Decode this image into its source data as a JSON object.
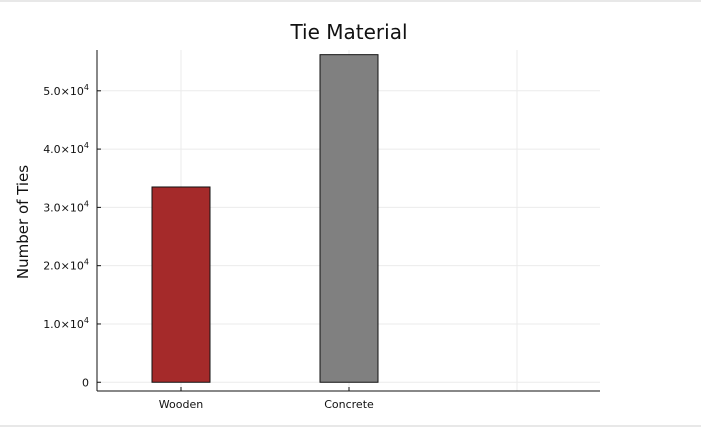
{
  "chart_data": {
    "type": "bar",
    "title": "Tie Material",
    "xlabel": "",
    "ylabel": "Number of Ties",
    "categories": [
      "Wooden",
      "Concrete"
    ],
    "values": [
      33500,
      56200
    ],
    "colors": [
      "#a52a2a",
      "#808080"
    ],
    "ylim": [
      -1500,
      57000
    ],
    "y_ticks": [
      {
        "value": 0,
        "label": "0",
        "mantissa": "",
        "exp": ""
      },
      {
        "value": 10000,
        "label": "",
        "mantissa": "1.0×10",
        "exp": "4"
      },
      {
        "value": 20000,
        "label": "",
        "mantissa": "2.0×10",
        "exp": "4"
      },
      {
        "value": 30000,
        "label": "",
        "mantissa": "3.0×10",
        "exp": "4"
      },
      {
        "value": 40000,
        "label": "",
        "mantissa": "4.0×10",
        "exp": "4"
      },
      {
        "value": 50000,
        "label": "",
        "mantissa": "5.0×10",
        "exp": "4"
      }
    ],
    "grid": true,
    "legend": "none"
  }
}
